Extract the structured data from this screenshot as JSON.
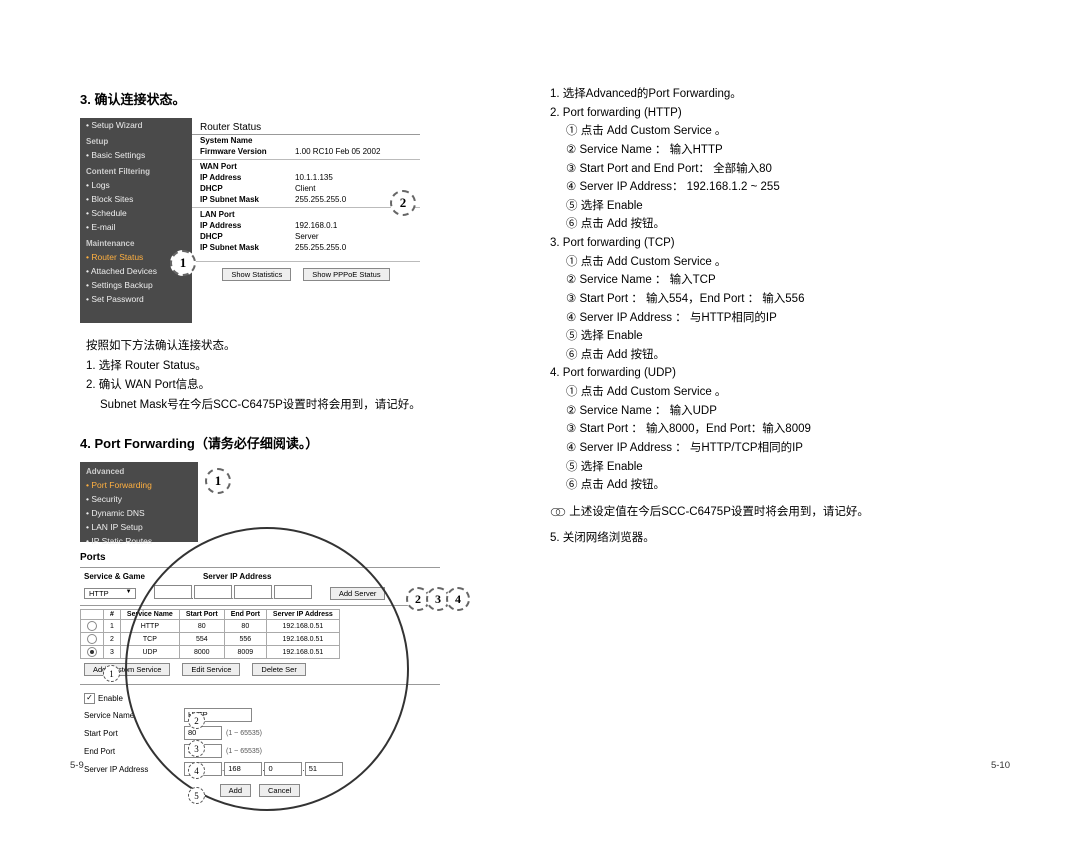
{
  "left": {
    "sec3_title": "3. 确认连接状态。",
    "sidebar": {
      "items": [
        {
          "t": "• Setup Wizard",
          "cls": ""
        },
        {
          "t": "Setup",
          "cls": "hdr"
        },
        {
          "t": "• Basic Settings",
          "cls": ""
        },
        {
          "t": "Content Filtering",
          "cls": "hdr"
        },
        {
          "t": "• Logs",
          "cls": ""
        },
        {
          "t": "• Block Sites",
          "cls": ""
        },
        {
          "t": "• Schedule",
          "cls": ""
        },
        {
          "t": "• E-mail",
          "cls": ""
        },
        {
          "t": "Maintenance",
          "cls": "hdr"
        },
        {
          "t": "• Router Status",
          "cls": "hi"
        },
        {
          "t": "• Attached Devices",
          "cls": ""
        },
        {
          "t": "• Settings Backup",
          "cls": ""
        },
        {
          "t": "• Set Password",
          "cls": ""
        }
      ]
    },
    "router_status": {
      "title": "Router Status",
      "sys_name_k": "System Name",
      "sys_name_v": "",
      "fw_k": "Firmware Version",
      "fw_v": "1.00 RC10 Feb 05 2002",
      "wan_hdr": "WAN Port",
      "ip_k": "IP Address",
      "ip_v": "10.1.1.135",
      "dhcp_k": "DHCP",
      "dhcp_v": "Client",
      "mask_k": "IP Subnet Mask",
      "mask_v": "255.255.255.0",
      "lan_hdr": "LAN Port",
      "lip_v": "192.168.0.1",
      "ldhcp_v": "Server",
      "lmask_v": "255.255.255.0",
      "btn1": "Show Statistics",
      "btn2": "Show PPPoE Status"
    },
    "callout1": "1",
    "callout2": "2",
    "notes_intro": "按照如下方法确认连接状态。",
    "notes1": "1. 选择 Router Status。",
    "notes2": "2. 确认 WAN Port信息。",
    "notes2b": "Subnet Mask号在今后SCC-C6475P设置时将会用到，请记好。",
    "sec4_title": "4. Port Forwarding（请务必仔细阅读。）",
    "pf_sidebar": {
      "items": [
        {
          "t": "Advanced",
          "cls": "hdr"
        },
        {
          "t": "• Port Forwarding",
          "cls": "hi"
        },
        {
          "t": "• Security",
          "cls": ""
        },
        {
          "t": "• Dynamic DNS",
          "cls": ""
        },
        {
          "t": "• LAN IP Setup",
          "cls": ""
        },
        {
          "t": "• IP Static Routes",
          "cls": ""
        }
      ]
    },
    "ports": {
      "label": "Ports",
      "serv_k": "Service & Game",
      "serv_ip_k": "Server IP Address",
      "serv_sel": "HTTP",
      "addserver": "Add Server",
      "cols": [
        "#",
        "Service Name",
        "Start Port",
        "End Port",
        "Server IP Address"
      ],
      "rows": [
        [
          "1",
          "HTTP",
          "80",
          "80",
          "192.168.0.51"
        ],
        [
          "2",
          "TCP",
          "554",
          "556",
          "192.168.0.51"
        ],
        [
          "3",
          "UDP",
          "8000",
          "8009",
          "192.168.0.51"
        ]
      ],
      "btn_add_cs": "Add Custom Service",
      "btn_edit": "Edit Service",
      "btn_del": "Delete Ser",
      "enable": "Enable",
      "svc_name_k": "Service Name",
      "svc_name_v": "HTTP",
      "sp_k": "Start Port",
      "sp_v": "80",
      "hint1": "(1 ~ 65535)",
      "ep_k": "End Port",
      "ep_v": "80",
      "hint2": "(1 ~ 65535)",
      "sip_k": "Server IP Address",
      "sip": [
        "192",
        "168",
        "0",
        "51"
      ],
      "btn_add": "Add",
      "btn_cancel": "Cancel"
    },
    "pgnum": "5-9"
  },
  "right": {
    "lines": [
      "1. 选择Advanced的Port Forwarding。",
      "2. Port forwarding (HTTP)",
      "① 点击 Add Custom Service 。",
      "② Service Name ： 输入HTTP",
      "③ Start Port and End Port： 全部输入80",
      "④ Server IP Address： 192.168.1.2 ~ 255",
      "⑤ 选择 Enable",
      "⑥ 点击 Add 按钮。",
      "3. Port forwarding (TCP)",
      "① 点击 Add Custom Service 。",
      "② Service Name ： 输入TCP",
      "③ Start Port ： 输入554，End Port ： 输入556",
      "④ Server IP Address ： 与HTTP相同的IP",
      "⑤ 选择 Enable",
      "⑥ 点击 Add 按钮。",
      "4. Port forwarding (UDP)",
      "① 点击 Add Custom Service 。",
      "② Service Name ： 输入UDP",
      "③ Start Port ： 输入8000，End Port：输入8009",
      "④ Server IP Address ： 与HTTP/TCP相同的IP",
      "⑤ 选择 Enable",
      "⑥ 点击 Add 按钮。"
    ],
    "note": "上述设定值在今后SCC-C6475P设置时将会用到，请记好。",
    "line5": "5. 关闭网络浏览器。",
    "pgnum": "5-10"
  }
}
